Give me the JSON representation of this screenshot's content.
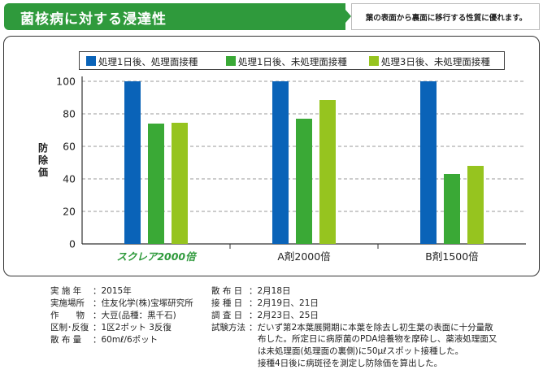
{
  "header": {
    "title": "菌核病に対する浸達性",
    "subtitle": "葉の表面から裏面に移行する性質に優れます。"
  },
  "chart_data": {
    "type": "bar",
    "title": "",
    "xlabel": "",
    "ylabel": "防除価",
    "ylim": [
      0,
      100
    ],
    "yticks": [
      0,
      20,
      40,
      60,
      80,
      100
    ],
    "categories": [
      "スクレア2000倍",
      "A剤2000倍",
      "B剤1500倍"
    ],
    "category_colors": [
      "#2f9a3c",
      "#222222",
      "#222222"
    ],
    "series": [
      {
        "name": "処理1日後、処理面接種",
        "color": "#0a63b8",
        "values": [
          100,
          100,
          100
        ]
      },
      {
        "name": "処理1日後、未処理面接種",
        "color": "#3aa936",
        "values": [
          74,
          77,
          43
        ]
      },
      {
        "name": "処理3日後、未処理面接種",
        "color": "#96c41f",
        "values": [
          74.5,
          88.5,
          48
        ]
      }
    ],
    "grid": true,
    "legend_position": "top"
  },
  "footer": {
    "left": [
      {
        "key": "実 施 年",
        "value": "2015年"
      },
      {
        "key": "実施場所",
        "value": "住友化学(株)宝塚研究所"
      },
      {
        "key": "作　　物",
        "value": "大豆(品種：黒千石)"
      },
      {
        "key": "区制･反復",
        "value": "1区2ポット 3反復"
      },
      {
        "key": "散 布 量",
        "value": "60mℓ/6ポット"
      }
    ],
    "right": [
      {
        "key": "散 布 日",
        "value": "2月18日"
      },
      {
        "key": "接 種 日",
        "value": "2月19日、21日"
      },
      {
        "key": "調 査 日",
        "value": "2月23日、25日"
      },
      {
        "key": "試験方法",
        "value": "だいず第2本葉展開期に本葉を除去し初生葉の表面に十分量散"
      }
    ],
    "method_continued": [
      "布した。所定日に病原菌のPDA培養物を摩砕し、薬液処理面又",
      "は未処理面(処理面の裏側)に50μℓスポット接種した。",
      "接種4日後に病斑径を測定し防除価を算出した。"
    ]
  }
}
